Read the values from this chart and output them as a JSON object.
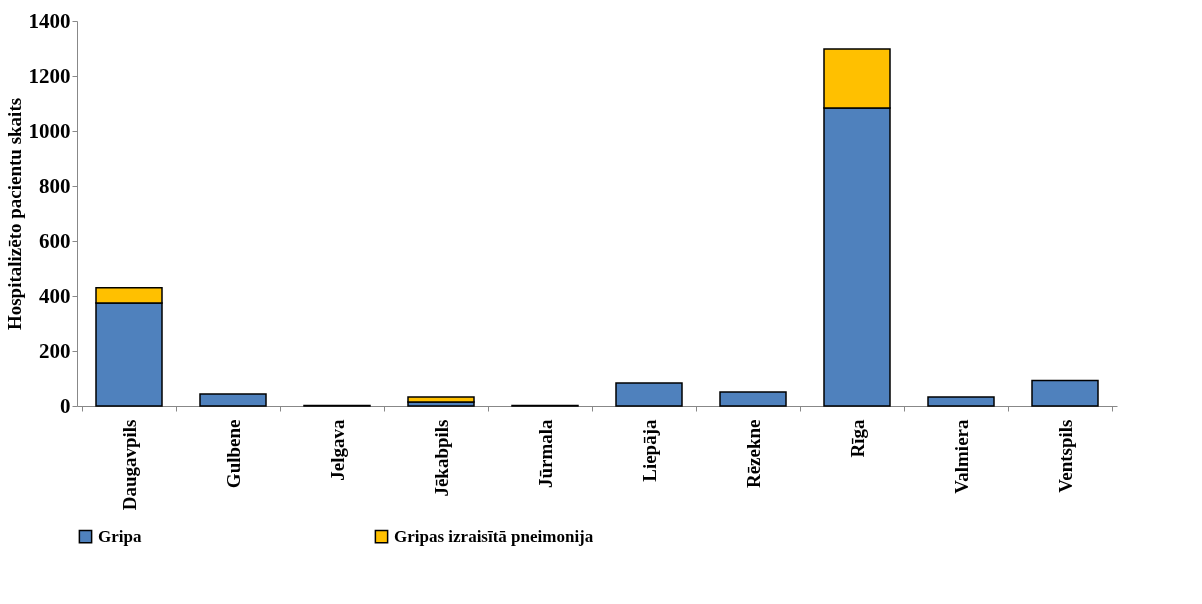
{
  "chart_data": {
    "type": "bar",
    "stacked": true,
    "ylabel": "Hospitalizēto pacientu skaits",
    "categories": [
      "Daugavpils",
      "Gulbene",
      "Jelgava",
      "Jēkabpils",
      "Jūrmala",
      "Liepāja",
      "Rēzekne",
      "Rīga",
      "Valmiera",
      "Ventspils"
    ],
    "series": [
      {
        "name": "Gripa",
        "color": "#4f81bd",
        "values": [
          375,
          44,
          2,
          15,
          2,
          84,
          51,
          1084,
          33,
          93
        ]
      },
      {
        "name": "Gripas izraisītā pneimonija",
        "color": "#ffc000",
        "values": [
          55,
          null,
          null,
          18,
          null,
          null,
          null,
          214,
          null,
          null
        ]
      }
    ],
    "ylim": [
      0,
      1400
    ],
    "yticks": [
      0,
      200,
      400,
      600,
      800,
      1000,
      1200,
      1400
    ],
    "grid": false,
    "legend": "bottom"
  }
}
